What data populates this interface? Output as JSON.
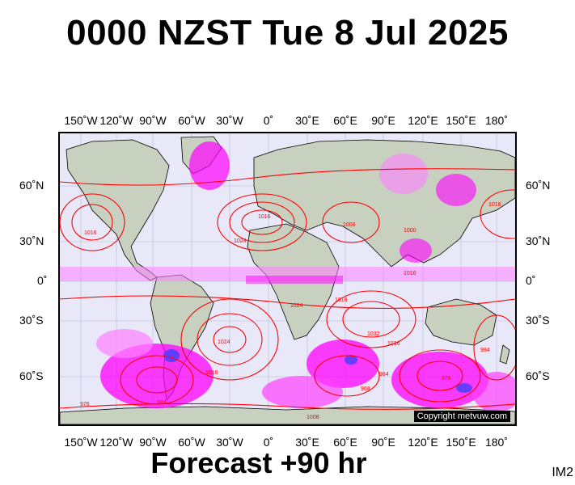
{
  "title": "0000 NZST Tue 8 Jul 2025",
  "forecast_label": "Forecast +90 hr",
  "corner_label": "IM2",
  "copyright": "Copyright metvuw.com",
  "top_ticks": [
    "150˚W",
    "120˚W",
    "90˚W",
    "60˚W",
    "30˚W",
    "0˚",
    "30˚E",
    "60˚E",
    "90˚E",
    "120˚E",
    "150˚E",
    "180˚"
  ],
  "bottom_ticks": [
    "150˚W",
    "120˚W",
    "90˚W",
    "60˚W",
    "30˚W",
    "0˚",
    "30˚E",
    "60˚E",
    "90˚E",
    "120˚E",
    "150˚E",
    "180˚"
  ],
  "left_ticks": [
    "60˚N",
    "30˚N",
    "0˚",
    "30˚S",
    "60˚S"
  ],
  "right_ticks": [
    "60˚N",
    "30˚N",
    "0˚",
    "30˚S",
    "60˚S"
  ],
  "isobar_labels": [
    "1016",
    "1024",
    "1016",
    "1008",
    "1016",
    "1000",
    "1016",
    "1024",
    "1032",
    "1016",
    "1016",
    "984",
    "976",
    "968",
    "984",
    "1008",
    "1016",
    "1024",
    "976",
    "984"
  ],
  "colors": {
    "ocean": "#e8e8f8",
    "land": "#c8d0c0",
    "isobar": "#ff0000",
    "precip_heavy": "#ff00ff",
    "precip_light": "#ff80ff",
    "precip_blue": "#4040ff"
  }
}
